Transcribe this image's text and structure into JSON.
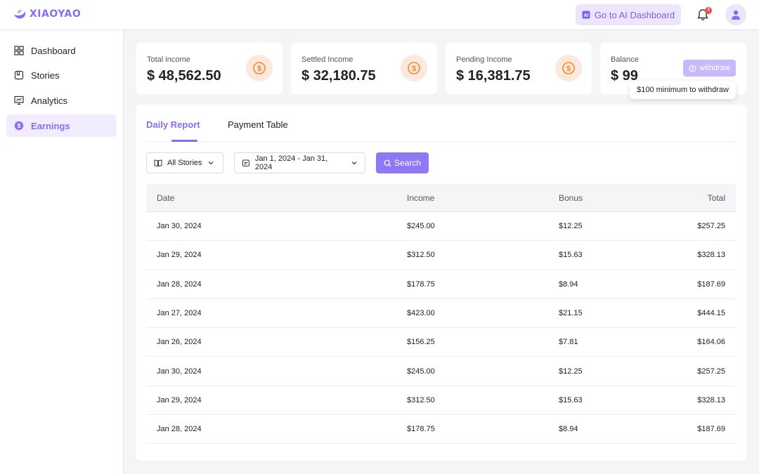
{
  "brand": {
    "name": "XIAOYAO"
  },
  "header": {
    "ai_dashboard_label": "Go to AI Dashboard",
    "notification_count": "3"
  },
  "sidebar": {
    "items": [
      {
        "label": "Dashboard",
        "icon": "dashboard-icon"
      },
      {
        "label": "Stories",
        "icon": "stories-icon"
      },
      {
        "label": "Analytics",
        "icon": "analytics-icon"
      },
      {
        "label": "Earnings",
        "icon": "dollar-icon",
        "active": true
      }
    ]
  },
  "cards": {
    "total": {
      "label": "Total income",
      "value": "$ 48,562.50"
    },
    "settled": {
      "label": "Settled Income",
      "value": "$ 32,180.75"
    },
    "pending": {
      "label": "Pending Income",
      "value": "$ 16,381.75"
    },
    "balance": {
      "label": "Balance",
      "value": "$ 99",
      "withdraw_label": "withdraw",
      "tooltip": "$100 minimum to withdraw"
    }
  },
  "tabs": {
    "daily": "Daily Report",
    "payment": "Payment Table"
  },
  "filters": {
    "stories": "All Stories",
    "date_range": "Jan 1, 2024 - Jan 31, 2024",
    "search_label": "Search"
  },
  "table": {
    "headers": {
      "date": "Date",
      "income": "Income",
      "bonus": "Bonus",
      "total": "Total"
    },
    "rows": [
      {
        "date": "Jan 30, 2024",
        "income": "$245.00",
        "bonus": "$12.25",
        "total": "$257.25"
      },
      {
        "date": "Jan 29, 2024",
        "income": "$312.50",
        "bonus": "$15.63",
        "total": "$328.13"
      },
      {
        "date": "Jan 28, 2024",
        "income": "$178.75",
        "bonus": "$8.94",
        "total": "$187.69"
      },
      {
        "date": "Jan 27, 2024",
        "income": "$423.00",
        "bonus": "$21.15",
        "total": "$444.15"
      },
      {
        "date": "Jan 26, 2024",
        "income": "$156.25",
        "bonus": "$7.81",
        "total": "$164.06"
      },
      {
        "date": "Jan 30, 2024",
        "income": "$245.00",
        "bonus": "$12.25",
        "total": "$257.25"
      },
      {
        "date": "Jan 29, 2024",
        "income": "$312.50",
        "bonus": "$15.63",
        "total": "$328.13"
      },
      {
        "date": "Jan 28, 2024",
        "income": "$178.75",
        "bonus": "$8.94",
        "total": "$187.69"
      }
    ]
  },
  "colors": {
    "accent": "#8b6cf0",
    "accent_light": "#ece6fd",
    "coin_bg": "#fde8dc",
    "coin": "#f08a30",
    "badge": "#f04848"
  }
}
